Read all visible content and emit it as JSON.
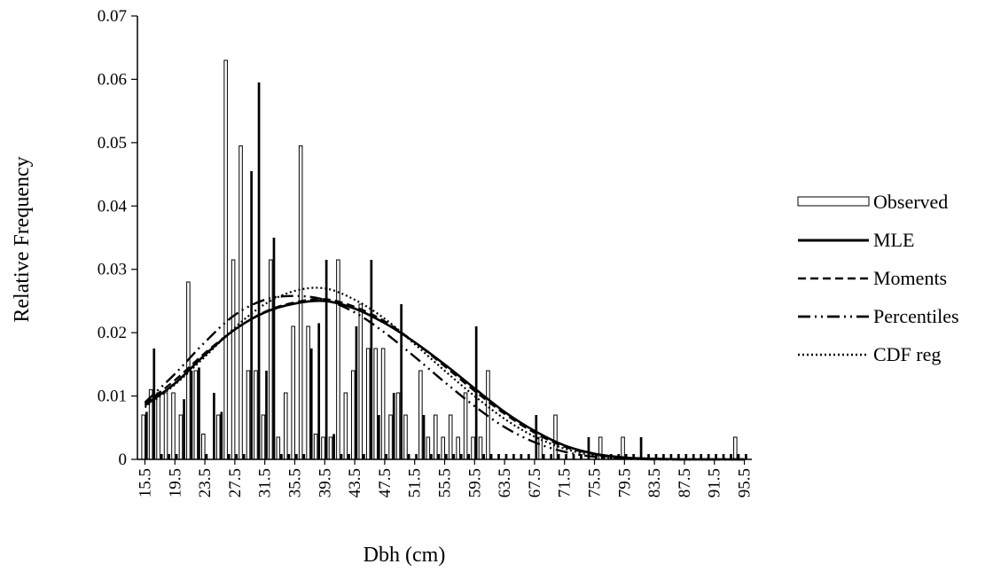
{
  "chart_data": {
    "type": "bar",
    "title": "",
    "xlabel": "Dbh (cm)",
    "ylabel": "Relative Frequency",
    "ylim": [
      0,
      0.07
    ],
    "yticks": [
      "0",
      "0.01",
      "0.02",
      "0.03",
      "0.04",
      "0.05",
      "0.06",
      "0.07"
    ],
    "xlim": [
      14.5,
      96.5
    ],
    "xtick_labels": [
      "15.5",
      "19.5",
      "23.5",
      "27.5",
      "31.5",
      "35.5",
      "39.5",
      "43.5",
      "47.5",
      "51.5",
      "55.5",
      "59.5",
      "63.5",
      "67.5",
      "71.5",
      "75.5",
      "79.5",
      "83.5",
      "87.5",
      "91.5",
      "95.5"
    ],
    "legend_position": "right",
    "legend": [
      {
        "key": "observed",
        "label": "Observed"
      },
      {
        "key": "mle",
        "label": "MLE"
      },
      {
        "key": "moments",
        "label": "Moments"
      },
      {
        "key": "percentiles",
        "label": "Percentiles"
      },
      {
        "key": "cdf",
        "label": "CDF reg"
      }
    ],
    "x": [
      15.5,
      16.5,
      17.5,
      18.5,
      19.5,
      20.5,
      21.5,
      22.5,
      23.5,
      24.5,
      25.5,
      26.5,
      27.5,
      28.5,
      29.5,
      30.5,
      31.5,
      32.5,
      33.5,
      34.5,
      35.5,
      36.5,
      37.5,
      38.5,
      39.5,
      40.5,
      41.5,
      42.5,
      43.5,
      44.5,
      45.5,
      46.5,
      47.5,
      48.5,
      49.5,
      50.5,
      51.5,
      52.5,
      53.5,
      54.5,
      55.5,
      56.5,
      57.5,
      58.5,
      59.5,
      60.5,
      61.5,
      62.5,
      63.5,
      64.5,
      65.5,
      66.5,
      67.5,
      68.5,
      69.5,
      70.5,
      71.5,
      72.5,
      73.5,
      74.5,
      75.5,
      76.5,
      77.5,
      78.5,
      79.5,
      80.5,
      81.5,
      82.5,
      83.5,
      84.5,
      85.5,
      86.5,
      87.5,
      88.5,
      89.5,
      90.5,
      91.5,
      92.5,
      93.5,
      94.5,
      95.5
    ],
    "series": [
      {
        "key": "observed",
        "name": "Observed",
        "style": "hollow-bar",
        "values": [
          0.007,
          0.011,
          0.0105,
          0.0105,
          0.0105,
          0.007,
          0.028,
          0.014,
          0.004,
          0,
          0.007,
          0.063,
          0.0315,
          0.0495,
          0.014,
          0.014,
          0.007,
          0.0315,
          0.0035,
          0.0105,
          0.021,
          0.0495,
          0.021,
          0.004,
          0.0035,
          0.0035,
          0.0315,
          0.0105,
          0.014,
          0.0245,
          0.0175,
          0.0175,
          0.0175,
          0.007,
          0.0105,
          0.007,
          0,
          0.014,
          0.0035,
          0.007,
          0.0035,
          0.007,
          0.0035,
          0.0105,
          0.0035,
          0.0035,
          0.014,
          0,
          0,
          0,
          0,
          0,
          0,
          0.0035,
          0,
          0.007,
          0,
          0,
          0,
          0,
          0,
          0.0035,
          0,
          0,
          0.0035,
          0,
          0,
          0,
          0,
          0,
          0,
          0,
          0,
          0,
          0,
          0,
          0,
          0,
          0,
          0.0035,
          0
        ]
      },
      {
        "key": "observed_dark",
        "name": "",
        "style": "solid-bar",
        "values": [
          0.0075,
          0.0175,
          0,
          0,
          0,
          0.0095,
          0.014,
          0.0145,
          0,
          0.0105,
          0.0075,
          0,
          0,
          0,
          0.0455,
          0.0595,
          0.014,
          0.035,
          0,
          0,
          0,
          0,
          0.0175,
          0.0215,
          0.0315,
          0.004,
          0,
          0,
          0.021,
          0,
          0.0315,
          0.007,
          0,
          0.0105,
          0.0245,
          0,
          0,
          0.007,
          0,
          0,
          0,
          0,
          0,
          0,
          0.021,
          0,
          0,
          0,
          0,
          0,
          0,
          0,
          0.007,
          0,
          0,
          0,
          0,
          0,
          0,
          0.0035,
          0,
          0,
          0,
          0,
          0,
          0,
          0.0035,
          0,
          0,
          0,
          0,
          0,
          0,
          0,
          0,
          0,
          0,
          0,
          0,
          0,
          0
        ]
      },
      {
        "key": "mle",
        "name": "MLE",
        "style": "solid",
        "values": [
          [
            15.5,
            0.0085
          ],
          [
            19.5,
            0.012
          ],
          [
            23.5,
            0.0165
          ],
          [
            27.5,
            0.0205
          ],
          [
            31.5,
            0.0232
          ],
          [
            35.5,
            0.0246
          ],
          [
            39.5,
            0.025
          ],
          [
            43.5,
            0.0238
          ],
          [
            47.5,
            0.0215
          ],
          [
            51.5,
            0.0185
          ],
          [
            55.5,
            0.015
          ],
          [
            59.5,
            0.0112
          ],
          [
            63.5,
            0.0075
          ],
          [
            67.5,
            0.0045
          ],
          [
            71.5,
            0.0022
          ],
          [
            75.5,
            0.0009
          ],
          [
            79.5,
            0.0003
          ],
          [
            83.5,
            0.0001
          ],
          [
            87.5,
            0
          ],
          [
            91.5,
            0
          ],
          [
            95.5,
            0
          ]
        ]
      },
      {
        "key": "moments",
        "name": "Moments",
        "style": "dashed",
        "values": [
          [
            15.5,
            0.0088
          ],
          [
            19.5,
            0.0125
          ],
          [
            23.5,
            0.0168
          ],
          [
            27.5,
            0.0205
          ],
          [
            31.5,
            0.0233
          ],
          [
            35.5,
            0.0248
          ],
          [
            39.5,
            0.0253
          ],
          [
            43.5,
            0.0241
          ],
          [
            47.5,
            0.0218
          ],
          [
            51.5,
            0.0185
          ],
          [
            55.5,
            0.0147
          ],
          [
            59.5,
            0.0108
          ],
          [
            63.5,
            0.0072
          ],
          [
            67.5,
            0.0042
          ],
          [
            71.5,
            0.002
          ],
          [
            75.5,
            0.0008
          ],
          [
            79.5,
            0.0002
          ],
          [
            83.5,
            0
          ],
          [
            87.5,
            0
          ],
          [
            91.5,
            0
          ],
          [
            95.5,
            0
          ]
        ]
      },
      {
        "key": "percentiles",
        "name": "Percentiles",
        "style": "dash-dot-dot",
        "values": [
          [
            15.5,
            0.009
          ],
          [
            19.5,
            0.0135
          ],
          [
            23.5,
            0.0185
          ],
          [
            27.5,
            0.0228
          ],
          [
            31.5,
            0.0252
          ],
          [
            35.5,
            0.0258
          ],
          [
            39.5,
            0.0252
          ],
          [
            43.5,
            0.0232
          ],
          [
            47.5,
            0.02
          ],
          [
            51.5,
            0.0162
          ],
          [
            55.5,
            0.0122
          ],
          [
            59.5,
            0.0084
          ],
          [
            63.5,
            0.0051
          ],
          [
            67.5,
            0.0027
          ],
          [
            71.5,
            0.0012
          ],
          [
            75.5,
            0.0004
          ],
          [
            79.5,
            0.0001
          ],
          [
            83.5,
            0
          ],
          [
            87.5,
            0
          ],
          [
            91.5,
            0
          ],
          [
            95.5,
            0
          ]
        ]
      },
      {
        "key": "cdf",
        "name": "CDF reg",
        "style": "dotted",
        "values": [
          [
            15.5,
            0.0082
          ],
          [
            19.5,
            0.0118
          ],
          [
            23.5,
            0.0162
          ],
          [
            27.5,
            0.0208
          ],
          [
            31.5,
            0.0245
          ],
          [
            35.5,
            0.0266
          ],
          [
            39.5,
            0.027
          ],
          [
            43.5,
            0.0252
          ],
          [
            47.5,
            0.0222
          ],
          [
            51.5,
            0.0182
          ],
          [
            55.5,
            0.014
          ],
          [
            59.5,
            0.01
          ],
          [
            63.5,
            0.0064
          ],
          [
            67.5,
            0.0036
          ],
          [
            71.5,
            0.0017
          ],
          [
            75.5,
            0.0006
          ],
          [
            79.5,
            0.0002
          ],
          [
            83.5,
            0
          ],
          [
            87.5,
            0
          ],
          [
            91.5,
            0
          ],
          [
            95.5,
            0
          ]
        ]
      }
    ]
  }
}
